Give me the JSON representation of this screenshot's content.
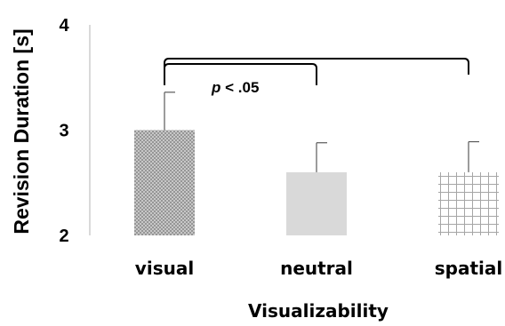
{
  "chart_data": {
    "type": "bar",
    "categories": [
      "visual",
      "neutral",
      "spatial"
    ],
    "values": [
      3.0,
      2.6,
      2.6
    ],
    "errors": [
      0.36,
      0.28,
      0.29
    ],
    "ylim": [
      2,
      4
    ],
    "yticks": [
      "2",
      "3",
      "4"
    ],
    "xlabel": "Visualizability",
    "ylabel": "Revision Duration [s]",
    "grid": false,
    "bar_styles": [
      "crosshatch-dense",
      "solid",
      "grid"
    ],
    "colors": {
      "bar_fill": "#d9d9d9",
      "hatch": "#909090",
      "grid_line": "#a6a6a6",
      "error_bar": "#595959",
      "axis": "#c0c0c0"
    },
    "significance": {
      "brackets": [
        {
          "from": "visual",
          "to": "neutral"
        },
        {
          "from": "visual",
          "to": "spatial"
        }
      ],
      "label_prefix": "p",
      "label_suffix": " < .05"
    }
  }
}
